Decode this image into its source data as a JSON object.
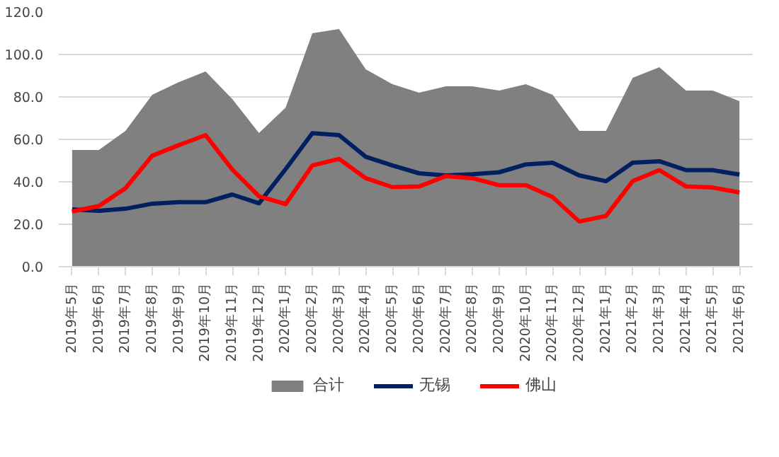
{
  "chart_data": {
    "type": "line",
    "categories": [
      "2019年5月",
      "2019年6月",
      "2019年7月",
      "2019年8月",
      "2019年9月",
      "2019年10月",
      "2019年11月",
      "2019年12月",
      "2020年1月",
      "2020年2月",
      "2020年3月",
      "2020年4月",
      "2020年5月",
      "2020年6月",
      "2020年7月",
      "2020年8月",
      "2020年9月",
      "2020年10月",
      "2020年11月",
      "2020年12月",
      "2021年1月",
      "2021年2月",
      "2021年3月",
      "2021年4月",
      "2021年5月",
      "2021年6月"
    ],
    "series": [
      {
        "name": "合计",
        "type": "area",
        "color": "#808080",
        "values": [
          55,
          55,
          64,
          81,
          87,
          92,
          79,
          63,
          75,
          110,
          112,
          93,
          86,
          82,
          85,
          85,
          83,
          86,
          81,
          64,
          64,
          89,
          94,
          83,
          83,
          78
        ]
      },
      {
        "name": "无锡",
        "color": "#002060",
        "values": [
          27,
          26.3,
          27.3,
          29.7,
          30.4,
          30.4,
          34,
          29.9,
          46,
          62.9,
          62,
          51.8,
          47.7,
          44,
          43,
          43.6,
          44.5,
          48.2,
          49,
          43,
          40.3,
          49,
          49.7,
          45.5,
          45.5,
          43.4
        ]
      },
      {
        "name": "佛山",
        "color": "#ff0000",
        "values": [
          26,
          28.6,
          37,
          52.3,
          57.3,
          62,
          45.8,
          33.2,
          29.5,
          47.7,
          50.8,
          41.7,
          37.5,
          37.8,
          42.7,
          41.7,
          38.4,
          38.4,
          32.8,
          21.3,
          23.9,
          40.3,
          45.5,
          37.8,
          37.3,
          35
        ]
      }
    ],
    "ylim": [
      0,
      120
    ],
    "yticks": [
      {
        "value": 0,
        "label": "0.0"
      },
      {
        "value": 20,
        "label": "20.0"
      },
      {
        "value": 40,
        "label": "40.0"
      },
      {
        "value": 60,
        "label": "60.0"
      },
      {
        "value": 80,
        "label": "80.0"
      },
      {
        "value": 100,
        "label": "100.0"
      },
      {
        "value": 120,
        "label": "120.0"
      }
    ],
    "grid": "y",
    "legend": "bottom"
  }
}
